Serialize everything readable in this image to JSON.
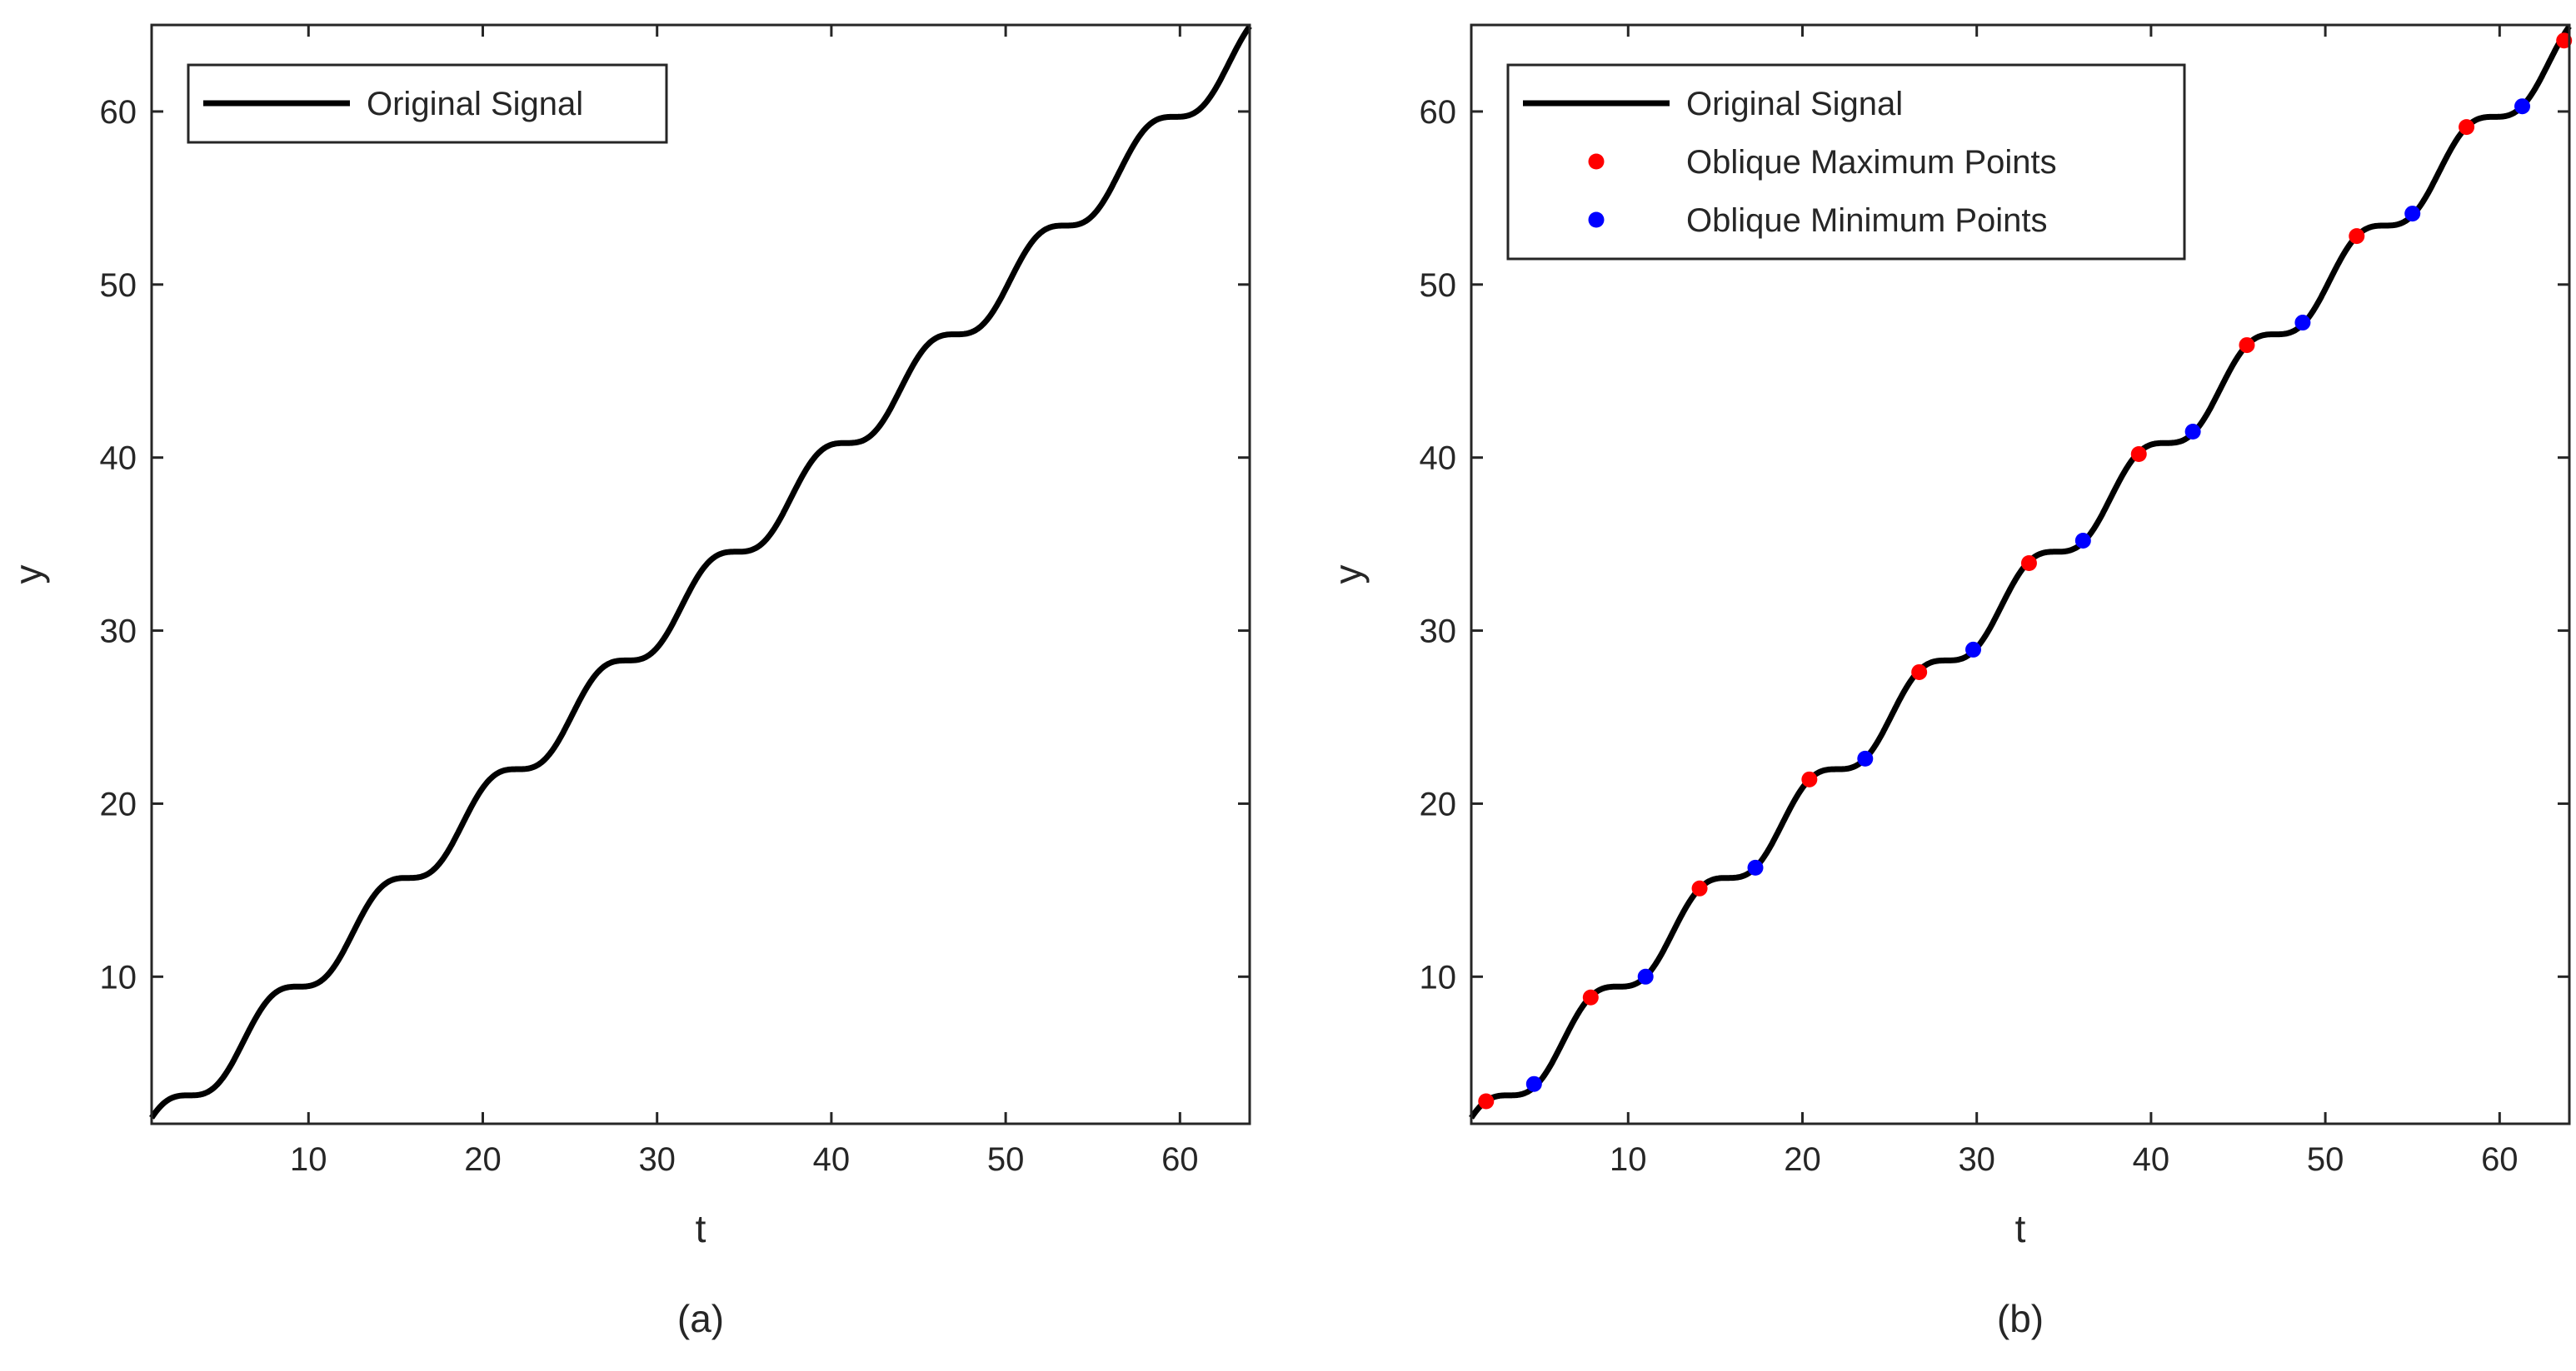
{
  "chart_data": [
    {
      "type": "line",
      "panel_label": "(a)",
      "xlabel": "t",
      "ylabel": "y",
      "xlim": [
        1,
        64
      ],
      "ylim": [
        1.5,
        65
      ],
      "xticks": [
        10,
        20,
        30,
        40,
        50,
        60
      ],
      "yticks": [
        10,
        20,
        30,
        40,
        50,
        60
      ],
      "grid": false,
      "legend": {
        "position": "top-left"
      },
      "series": [
        {
          "name": "Original Signal",
          "color": "#000000",
          "style": "line",
          "formula": "y = t + sin(t)",
          "x": [
            1,
            2,
            3,
            4,
            5,
            6,
            7,
            8,
            9,
            10,
            11,
            12,
            13,
            14,
            15,
            16,
            17,
            18,
            19,
            20,
            21,
            22,
            23,
            24,
            25,
            26,
            27,
            28,
            29,
            30,
            31,
            32,
            33,
            34,
            35,
            36,
            37,
            38,
            39,
            40,
            41,
            42,
            43,
            44,
            45,
            46,
            47,
            48,
            49,
            50,
            51,
            52,
            53,
            54,
            55,
            56,
            57,
            58,
            59,
            60,
            61,
            62,
            63,
            64
          ],
          "y": [
            1.84,
            2.91,
            3.14,
            3.24,
            4.04,
            5.72,
            7.66,
            8.99,
            9.41,
            9.46,
            10.0,
            11.46,
            13.42,
            14.99,
            15.65,
            15.71,
            16.04,
            17.25,
            19.15,
            20.91,
            21.84,
            21.99,
            22.15,
            23.09,
            24.87,
            26.76,
            27.96,
            28.27,
            28.34,
            28.99,
            30.6,
            32.55,
            33.99,
            34.47,
            34.57,
            35.01,
            36.36,
            38.3,
            39.96,
            40.75,
            40.84,
            41.08,
            42.17,
            43.98,
            45.85,
            46.9,
            47.12,
            47.23,
            47.95,
            49.74,
            51.67,
            52.99,
            53.4,
            53.44,
            54.0,
            55.48,
            57.44,
            58.99,
            59.64,
            59.7,
            60.03,
            61.26,
            63.17,
            64.92
          ]
        }
      ]
    },
    {
      "type": "line",
      "panel_label": "(b)",
      "xlabel": "t",
      "ylabel": "y",
      "xlim": [
        1,
        64
      ],
      "ylim": [
        1.5,
        65
      ],
      "xticks": [
        10,
        20,
        30,
        40,
        50,
        60
      ],
      "yticks": [
        10,
        20,
        30,
        40,
        50,
        60
      ],
      "grid": false,
      "legend": {
        "position": "top-left"
      },
      "series": [
        {
          "name": "Original Signal",
          "color": "#000000",
          "style": "line",
          "formula": "y = t + sin(t)",
          "x": [
            1,
            2,
            3,
            4,
            5,
            6,
            7,
            8,
            9,
            10,
            11,
            12,
            13,
            14,
            15,
            16,
            17,
            18,
            19,
            20,
            21,
            22,
            23,
            24,
            25,
            26,
            27,
            28,
            29,
            30,
            31,
            32,
            33,
            34,
            35,
            36,
            37,
            38,
            39,
            40,
            41,
            42,
            43,
            44,
            45,
            46,
            47,
            48,
            49,
            50,
            51,
            52,
            53,
            54,
            55,
            56,
            57,
            58,
            59,
            60,
            61,
            62,
            63,
            64
          ],
          "y": [
            1.84,
            2.91,
            3.14,
            3.24,
            4.04,
            5.72,
            7.66,
            8.99,
            9.41,
            9.46,
            10.0,
            11.46,
            13.42,
            14.99,
            15.65,
            15.71,
            16.04,
            17.25,
            19.15,
            20.91,
            21.84,
            21.99,
            22.15,
            23.09,
            24.87,
            26.76,
            27.96,
            28.27,
            28.34,
            28.99,
            30.6,
            32.55,
            33.99,
            34.47,
            34.57,
            35.01,
            36.36,
            38.3,
            39.96,
            40.75,
            40.84,
            41.08,
            42.17,
            43.98,
            45.85,
            46.9,
            47.12,
            47.23,
            47.95,
            49.74,
            51.67,
            52.99,
            53.4,
            53.44,
            54.0,
            55.48,
            57.44,
            58.99,
            59.64,
            59.7,
            60.03,
            61.26,
            63.17,
            64.92
          ]
        },
        {
          "name": "Oblique Maximum Points",
          "color": "#ff0000",
          "style": "markers",
          "x": [
            1.85,
            7.85,
            14.1,
            20.4,
            26.7,
            33.0,
            39.3,
            45.5,
            51.8,
            58.1,
            63.7
          ],
          "y": [
            2.8,
            8.8,
            15.1,
            21.4,
            27.6,
            33.9,
            40.2,
            46.5,
            52.8,
            59.1,
            64.1
          ]
        },
        {
          "name": "Oblique Minimum Points",
          "color": "#0000ff",
          "style": "markers",
          "x": [
            4.6,
            11.0,
            17.3,
            23.6,
            29.8,
            36.1,
            42.4,
            48.7,
            55.0,
            61.3
          ],
          "y": [
            3.8,
            10.0,
            16.3,
            22.6,
            28.9,
            35.2,
            41.5,
            47.8,
            54.1,
            60.3
          ]
        }
      ]
    }
  ]
}
